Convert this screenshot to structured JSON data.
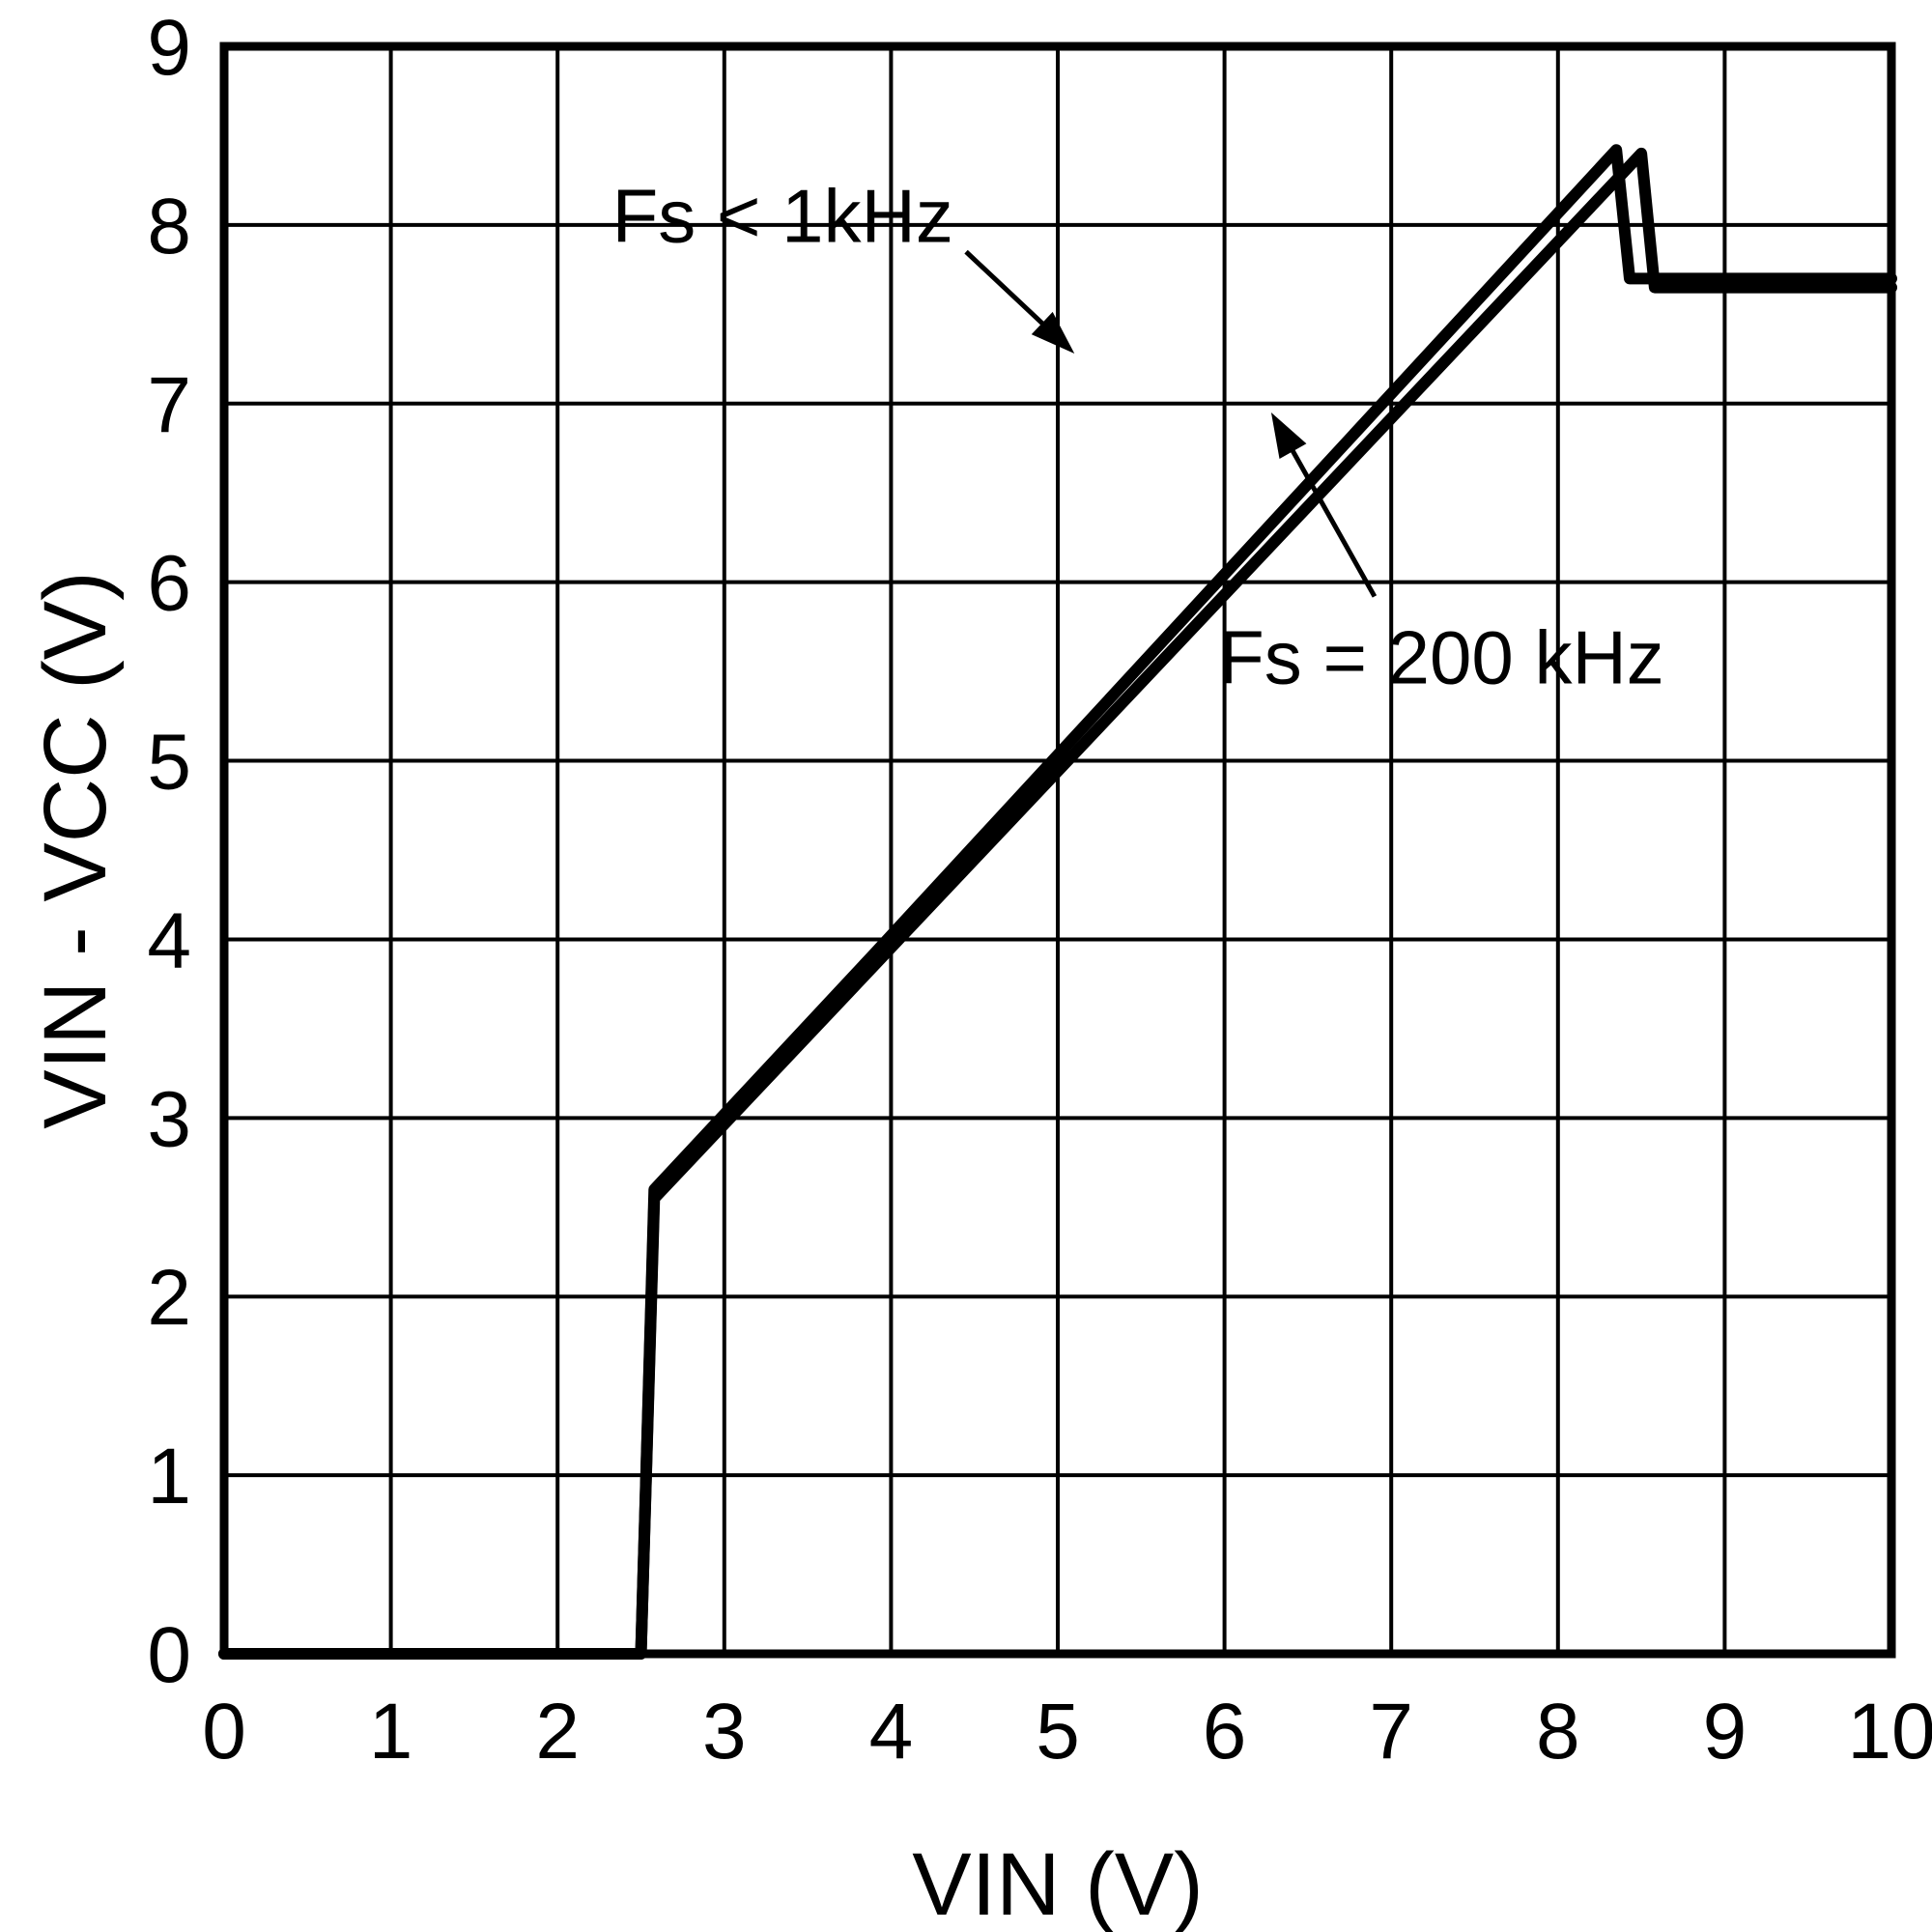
{
  "chart_data": {
    "type": "line",
    "title": "",
    "xlabel": "VIN (V)",
    "ylabel": "VIN - VCC (V)",
    "xlim": [
      0,
      10
    ],
    "ylim": [
      0,
      9
    ],
    "xticks": [
      0,
      1,
      2,
      3,
      4,
      5,
      6,
      7,
      8,
      9,
      10
    ],
    "yticks": [
      0,
      1,
      2,
      3,
      4,
      5,
      6,
      7,
      8,
      9
    ],
    "grid": true,
    "legend_position": "none",
    "colors": {
      "foreground": "#000000",
      "background": "#ffffff"
    },
    "series": [
      {
        "name": "Fs < 1kHz",
        "points": [
          [
            0,
            0
          ],
          [
            2.5,
            0
          ],
          [
            2.58,
            2.6
          ],
          [
            3.9,
            3.92
          ],
          [
            8.35,
            8.42
          ],
          [
            8.43,
            7.7
          ],
          [
            10,
            7.7
          ]
        ]
      },
      {
        "name": "Fs = 200 kHz",
        "points": [
          [
            0,
            0
          ],
          [
            2.5,
            0
          ],
          [
            2.58,
            2.55
          ],
          [
            8.5,
            8.4
          ],
          [
            8.58,
            7.65
          ],
          [
            10,
            7.65
          ]
        ]
      }
    ],
    "annotations": [
      {
        "label": "Fs < 1kHz",
        "text_x": 3.35,
        "text_y": 8.05,
        "arrow_from": [
          4.45,
          7.85
        ],
        "arrow_to": [
          5.1,
          7.28
        ]
      },
      {
        "label": "Fs = 200 kHz",
        "text_x": 7.3,
        "text_y": 5.58,
        "arrow_from": [
          6.9,
          5.92
        ],
        "arrow_to": [
          6.28,
          6.95
        ]
      }
    ]
  }
}
